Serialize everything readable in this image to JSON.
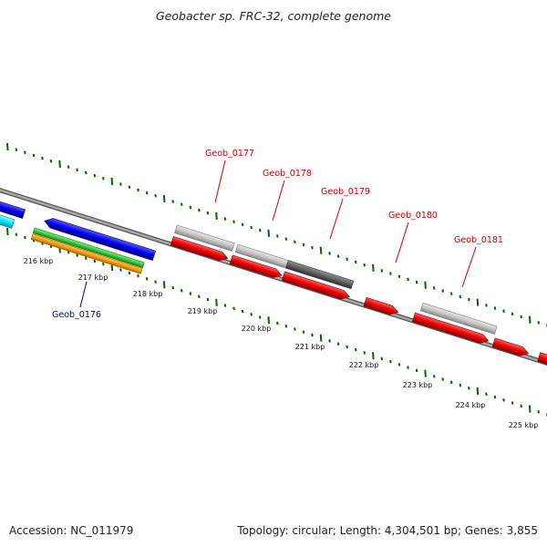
{
  "title": "Geobacter sp. FRC-32, complete genome",
  "footer": {
    "accession": "Accession: NC_011979",
    "topology": "Topology: circular; Length: 4,304,501 bp; Genes: 3,855"
  },
  "colors": {
    "forward_cds": "#ee0000",
    "reverse_cds": "#0000ee",
    "cyan_feature": "#00e5ee",
    "green_feature": "#33cc33",
    "orange_feature": "#ff9900",
    "gray_feature": "#c0c0c0",
    "dark_gray_feature": "#606060",
    "backbone": "#808080",
    "ticks": "#006600",
    "label_red": "#cc0000",
    "label_blue": "#0000aa"
  },
  "kbp_ticks": [
    "216 kbp",
    "217 kbp",
    "218 kbp",
    "219 kbp",
    "220 kbp",
    "221 kbp",
    "222 kbp",
    "223 kbp",
    "224 kbp",
    "225 kbp"
  ],
  "gene_labels": [
    {
      "label": "Geob_0176",
      "color": "blue"
    },
    {
      "label": "Geob_0177",
      "color": "red"
    },
    {
      "label": "Geob_0178",
      "color": "red"
    },
    {
      "label": "Geob_0179",
      "color": "red"
    },
    {
      "label": "Geob_0180",
      "color": "red"
    },
    {
      "label": "Geob_0181",
      "color": "red"
    }
  ]
}
